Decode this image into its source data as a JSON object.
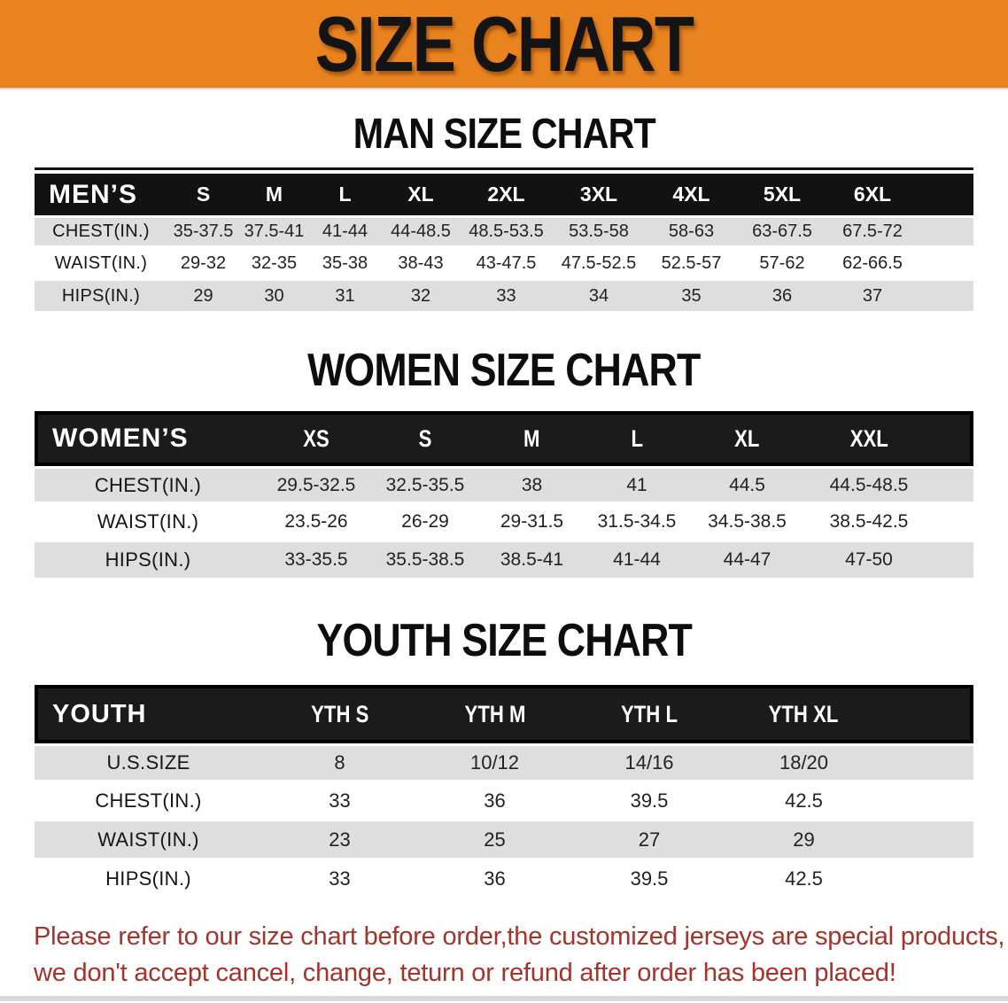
{
  "banner": {
    "title": "SIZE CHART",
    "bg_color": "#E8831F"
  },
  "tables": {
    "men": {
      "heading": "MAN SIZE CHART",
      "corner_label": "MEN’S",
      "columns": [
        "S",
        "M",
        "L",
        "XL",
        "2XL",
        "3XL",
        "4XL",
        "5XL",
        "6XL"
      ],
      "rows": [
        {
          "label": "CHEST(IN.)",
          "values": [
            "35-37.5",
            "37.5-41",
            "41-44",
            "44-48.5",
            "48.5-53.5",
            "53.5-58",
            "58-63",
            "63-67.5",
            "67.5-72"
          ]
        },
        {
          "label": "WAIST(IN.)",
          "values": [
            "29-32",
            "32-35",
            "35-38",
            "38-43",
            "43-47.5",
            "47.5-52.5",
            "52.5-57",
            "57-62",
            "62-66.5"
          ]
        },
        {
          "label": "HIPS(IN.)",
          "values": [
            "29",
            "30",
            "31",
            "32",
            "33",
            "34",
            "35",
            "36",
            "37"
          ]
        }
      ]
    },
    "women": {
      "heading": "WOMEN SIZE CHART",
      "corner_label": "WOMEN’S",
      "columns": [
        "XS",
        "S",
        "M",
        "L",
        "XL",
        "XXL"
      ],
      "rows": [
        {
          "label": "CHEST(IN.)",
          "values": [
            "29.5-32.5",
            "32.5-35.5",
            "38",
            "41",
            "44.5",
            "44.5-48.5"
          ]
        },
        {
          "label": "WAIST(IN.)",
          "values": [
            "23.5-26",
            "26-29",
            "29-31.5",
            "31.5-34.5",
            "34.5-38.5",
            "38.5-42.5"
          ]
        },
        {
          "label": "HIPS(IN.)",
          "values": [
            "33-35.5",
            "35.5-38.5",
            "38.5-41",
            "41-44",
            "44-47",
            "47-50"
          ]
        }
      ]
    },
    "youth": {
      "heading": "YOUTH SIZE CHART",
      "corner_label": "YOUTH",
      "columns": [
        "YTH S",
        "YTH M",
        "YTH L",
        "YTH XL"
      ],
      "rows": [
        {
          "label": "U.S.SIZE",
          "values": [
            "8",
            "10/12",
            "14/16",
            "18/20"
          ]
        },
        {
          "label": "CHEST(IN.)",
          "values": [
            "33",
            "36",
            "39.5",
            "42.5"
          ]
        },
        {
          "label": "WAIST(IN.)",
          "values": [
            "23",
            "25",
            "27",
            "29"
          ]
        },
        {
          "label": "HIPS(IN.)",
          "values": [
            "33",
            "36",
            "39.5",
            "42.5"
          ]
        }
      ]
    }
  },
  "disclaimer": {
    "line1": "Please refer to our size chart before order,the customized jerseys are special products,",
    "line2": "we don't accept cancel, change, teturn or refund after order has been placed!",
    "color": "#A5332C"
  }
}
